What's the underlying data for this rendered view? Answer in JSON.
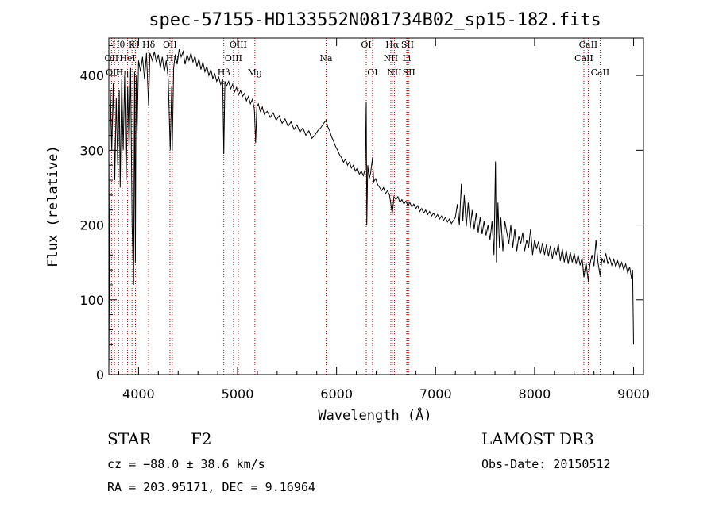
{
  "chart_data": {
    "type": "line",
    "title": "spec-57155-HD133552N081734B02_sp15-182.fits",
    "xlabel": "Wavelength (Å)",
    "ylabel": "Flux (relative)",
    "xlim": [
      3700,
      9100
    ],
    "ylim": [
      0,
      450
    ],
    "xticks": [
      4000,
      5000,
      6000,
      7000,
      8000,
      9000
    ],
    "yticks": [
      0,
      100,
      200,
      300,
      400
    ],
    "grid": false,
    "series": [
      {
        "values_xy": [
          [
            3700,
            5
          ],
          [
            3705,
            120
          ],
          [
            3715,
            380
          ],
          [
            3730,
            300
          ],
          [
            3745,
            390
          ],
          [
            3760,
            260
          ],
          [
            3775,
            370
          ],
          [
            3790,
            280
          ],
          [
            3805,
            380
          ],
          [
            3815,
            250
          ],
          [
            3830,
            395
          ],
          [
            3845,
            300
          ],
          [
            3860,
            400
          ],
          [
            3875,
            260
          ],
          [
            3890,
            385
          ],
          [
            3905,
            300
          ],
          [
            3920,
            410
          ],
          [
            3935,
            200
          ],
          [
            3950,
            120
          ],
          [
            3960,
            405
          ],
          [
            3968,
            150
          ],
          [
            3975,
            400
          ],
          [
            3985,
            320
          ],
          [
            4000,
            420
          ],
          [
            4020,
            405
          ],
          [
            4040,
            425
          ],
          [
            4060,
            395
          ],
          [
            4080,
            430
          ],
          [
            4101,
            360
          ],
          [
            4115,
            430
          ],
          [
            4140,
            420
          ],
          [
            4160,
            432
          ],
          [
            4180,
            418
          ],
          [
            4200,
            428
          ],
          [
            4220,
            410
          ],
          [
            4240,
            425
          ],
          [
            4260,
            405
          ],
          [
            4280,
            420
          ],
          [
            4300,
            395
          ],
          [
            4320,
            300
          ],
          [
            4335,
            385
          ],
          [
            4340,
            300
          ],
          [
            4355,
            410
          ],
          [
            4370,
            428
          ],
          [
            4390,
            415
          ],
          [
            4410,
            435
          ],
          [
            4430,
            425
          ],
          [
            4450,
            432
          ],
          [
            4470,
            415
          ],
          [
            4490,
            428
          ],
          [
            4510,
            420
          ],
          [
            4530,
            430
          ],
          [
            4550,
            418
          ],
          [
            4570,
            426
          ],
          [
            4590,
            412
          ],
          [
            4610,
            422
          ],
          [
            4630,
            408
          ],
          [
            4650,
            418
          ],
          [
            4670,
            405
          ],
          [
            4690,
            412
          ],
          [
            4710,
            400
          ],
          [
            4730,
            408
          ],
          [
            4750,
            396
          ],
          [
            4770,
            402
          ],
          [
            4790,
            392
          ],
          [
            4810,
            398
          ],
          [
            4830,
            388
          ],
          [
            4850,
            395
          ],
          [
            4861,
            295
          ],
          [
            4872,
            392
          ],
          [
            4890,
            386
          ],
          [
            4910,
            392
          ],
          [
            4930,
            382
          ],
          [
            4950,
            388
          ],
          [
            4970,
            378
          ],
          [
            4990,
            384
          ],
          [
            5010,
            374
          ],
          [
            5030,
            380
          ],
          [
            5050,
            372
          ],
          [
            5070,
            376
          ],
          [
            5090,
            366
          ],
          [
            5110,
            372
          ],
          [
            5130,
            362
          ],
          [
            5150,
            368
          ],
          [
            5170,
            355
          ],
          [
            5183,
            310
          ],
          [
            5195,
            358
          ],
          [
            5210,
            362
          ],
          [
            5230,
            352
          ],
          [
            5250,
            358
          ],
          [
            5270,
            348
          ],
          [
            5300,
            352
          ],
          [
            5330,
            344
          ],
          [
            5360,
            350
          ],
          [
            5390,
            340
          ],
          [
            5420,
            346
          ],
          [
            5450,
            336
          ],
          [
            5480,
            342
          ],
          [
            5510,
            332
          ],
          [
            5540,
            338
          ],
          [
            5570,
            328
          ],
          [
            5600,
            334
          ],
          [
            5630,
            324
          ],
          [
            5660,
            330
          ],
          [
            5690,
            320
          ],
          [
            5720,
            326
          ],
          [
            5750,
            316
          ],
          [
            5780,
            320
          ],
          [
            5810,
            326
          ],
          [
            5840,
            330
          ],
          [
            5870,
            336
          ],
          [
            5895,
            340
          ],
          [
            5910,
            332
          ],
          [
            5930,
            326
          ],
          [
            5950,
            318
          ],
          [
            5970,
            312
          ],
          [
            5990,
            305
          ],
          [
            6010,
            300
          ],
          [
            6030,
            294
          ],
          [
            6050,
            290
          ],
          [
            6070,
            284
          ],
          [
            6090,
            288
          ],
          [
            6110,
            280
          ],
          [
            6130,
            284
          ],
          [
            6150,
            276
          ],
          [
            6170,
            280
          ],
          [
            6190,
            272
          ],
          [
            6210,
            276
          ],
          [
            6230,
            268
          ],
          [
            6250,
            272
          ],
          [
            6270,
            266
          ],
          [
            6290,
            275
          ],
          [
            6300,
            365
          ],
          [
            6305,
            200
          ],
          [
            6315,
            280
          ],
          [
            6330,
            262
          ],
          [
            6345,
            270
          ],
          [
            6363,
            290
          ],
          [
            6375,
            258
          ],
          [
            6395,
            262
          ],
          [
            6415,
            254
          ],
          [
            6435,
            250
          ],
          [
            6455,
            246
          ],
          [
            6475,
            250
          ],
          [
            6495,
            242
          ],
          [
            6515,
            246
          ],
          [
            6535,
            240
          ],
          [
            6563,
            215
          ],
          [
            6580,
            238
          ],
          [
            6600,
            234
          ],
          [
            6620,
            238
          ],
          [
            6640,
            230
          ],
          [
            6660,
            234
          ],
          [
            6680,
            228
          ],
          [
            6700,
            232
          ],
          [
            6720,
            226
          ],
          [
            6740,
            230
          ],
          [
            6760,
            224
          ],
          [
            6780,
            228
          ],
          [
            6800,
            222
          ],
          [
            6820,
            226
          ],
          [
            6840,
            218
          ],
          [
            6860,
            222
          ],
          [
            6880,
            216
          ],
          [
            6900,
            220
          ],
          [
            6920,
            214
          ],
          [
            6940,
            218
          ],
          [
            6960,
            212
          ],
          [
            6980,
            216
          ],
          [
            7000,
            210
          ],
          [
            7020,
            214
          ],
          [
            7040,
            208
          ],
          [
            7060,
            212
          ],
          [
            7080,
            206
          ],
          [
            7100,
            210
          ],
          [
            7120,
            204
          ],
          [
            7140,
            208
          ],
          [
            7160,
            202
          ],
          [
            7180,
            206
          ],
          [
            7200,
            210
          ],
          [
            7220,
            228
          ],
          [
            7240,
            200
          ],
          [
            7260,
            255
          ],
          [
            7275,
            205
          ],
          [
            7290,
            240
          ],
          [
            7310,
            198
          ],
          [
            7330,
            230
          ],
          [
            7350,
            196
          ],
          [
            7370,
            220
          ],
          [
            7390,
            194
          ],
          [
            7410,
            216
          ],
          [
            7430,
            190
          ],
          [
            7450,
            210
          ],
          [
            7470,
            188
          ],
          [
            7490,
            205
          ],
          [
            7510,
            186
          ],
          [
            7530,
            200
          ],
          [
            7550,
            180
          ],
          [
            7570,
            205
          ],
          [
            7590,
            160
          ],
          [
            7605,
            285
          ],
          [
            7615,
            150
          ],
          [
            7630,
            230
          ],
          [
            7645,
            170
          ],
          [
            7660,
            210
          ],
          [
            7680,
            165
          ],
          [
            7700,
            205
          ],
          [
            7720,
            190
          ],
          [
            7740,
            175
          ],
          [
            7760,
            200
          ],
          [
            7780,
            170
          ],
          [
            7800,
            195
          ],
          [
            7820,
            165
          ],
          [
            7840,
            185
          ],
          [
            7860,
            175
          ],
          [
            7880,
            190
          ],
          [
            7900,
            165
          ],
          [
            7920,
            180
          ],
          [
            7940,
            170
          ],
          [
            7960,
            195
          ],
          [
            7980,
            160
          ],
          [
            8000,
            180
          ],
          [
            8020,
            168
          ],
          [
            8040,
            178
          ],
          [
            8060,
            162
          ],
          [
            8080,
            176
          ],
          [
            8100,
            160
          ],
          [
            8120,
            174
          ],
          [
            8140,
            158
          ],
          [
            8160,
            172
          ],
          [
            8180,
            155
          ],
          [
            8200,
            170
          ],
          [
            8220,
            160
          ],
          [
            8240,
            175
          ],
          [
            8260,
            152
          ],
          [
            8280,
            168
          ],
          [
            8300,
            150
          ],
          [
            8320,
            166
          ],
          [
            8340,
            148
          ],
          [
            8360,
            164
          ],
          [
            8380,
            150
          ],
          [
            8400,
            162
          ],
          [
            8420,
            148
          ],
          [
            8440,
            160
          ],
          [
            8460,
            146
          ],
          [
            8480,
            156
          ],
          [
            8498,
            130
          ],
          [
            8520,
            150
          ],
          [
            8542,
            125
          ],
          [
            8560,
            148
          ],
          [
            8580,
            160
          ],
          [
            8600,
            145
          ],
          [
            8620,
            180
          ],
          [
            8640,
            150
          ],
          [
            8662,
            132
          ],
          [
            8680,
            155
          ],
          [
            8700,
            150
          ],
          [
            8720,
            162
          ],
          [
            8740,
            148
          ],
          [
            8760,
            156
          ],
          [
            8780,
            146
          ],
          [
            8800,
            154
          ],
          [
            8820,
            144
          ],
          [
            8840,
            152
          ],
          [
            8860,
            142
          ],
          [
            8880,
            150
          ],
          [
            8900,
            140
          ],
          [
            8920,
            148
          ],
          [
            8940,
            136
          ],
          [
            8960,
            144
          ],
          [
            8980,
            128
          ],
          [
            8990,
            140
          ],
          [
            9000,
            40
          ]
        ]
      }
    ],
    "lines": [
      {
        "label": "Hθ",
        "wave": 3798,
        "row": 0
      },
      {
        "label": "K",
        "wave": 3934,
        "row": 0
      },
      {
        "label": "H",
        "wave": 3969,
        "row": 0
      },
      {
        "label": "Hδ",
        "wave": 4102,
        "row": 0
      },
      {
        "label": "OII",
        "wave": 3727,
        "row": 1
      },
      {
        "label": "HeI",
        "wave": 3889,
        "row": 1
      },
      {
        "label": "Hη",
        "wave": 3835,
        "row": 2
      },
      {
        "label": "OIII",
        "wave": 3757,
        "row": 2
      },
      {
        "label": "OII",
        "wave": 4317,
        "row": 0
      },
      {
        "label": "Hγ",
        "wave": 4341,
        "row": 1
      },
      {
        "label": "OIII",
        "wave": 5007,
        "row": 0
      },
      {
        "label": "OIII",
        "wave": 4959,
        "row": 1
      },
      {
        "label": "Hβ",
        "wave": 4861,
        "row": 2
      },
      {
        "label": "Mg",
        "wave": 5175,
        "row": 2
      },
      {
        "label": "Na",
        "wave": 5894,
        "row": 1
      },
      {
        "label": "OI",
        "wave": 6300,
        "row": 0
      },
      {
        "label": "OI",
        "wave": 6363,
        "row": 2
      },
      {
        "label": "Hα",
        "wave": 6563,
        "row": 0
      },
      {
        "label": "NII",
        "wave": 6548,
        "row": 1
      },
      {
        "label": "NII",
        "wave": 6584,
        "row": 2
      },
      {
        "label": "SII",
        "wave": 6717,
        "row": 0
      },
      {
        "label": "Li",
        "wave": 6708,
        "row": 1
      },
      {
        "label": "SII",
        "wave": 6731,
        "row": 2
      },
      {
        "label": "CaII",
        "wave": 8542,
        "row": 0
      },
      {
        "label": "CaII",
        "wave": 8498,
        "row": 1
      },
      {
        "label": "CaII",
        "wave": 8662,
        "row": 2
      }
    ]
  },
  "info": {
    "object_class": "STAR",
    "subclass": "F2",
    "survey": "LAMOST DR3",
    "cz": "cz = −88.0 ± 38.6 km/s",
    "obs_date": "Obs-Date: 20150512",
    "coords": "RA = 203.95171, DEC =   9.16964"
  },
  "colors": {
    "line_marker": "#cc0000",
    "spectrum": "#000000"
  }
}
